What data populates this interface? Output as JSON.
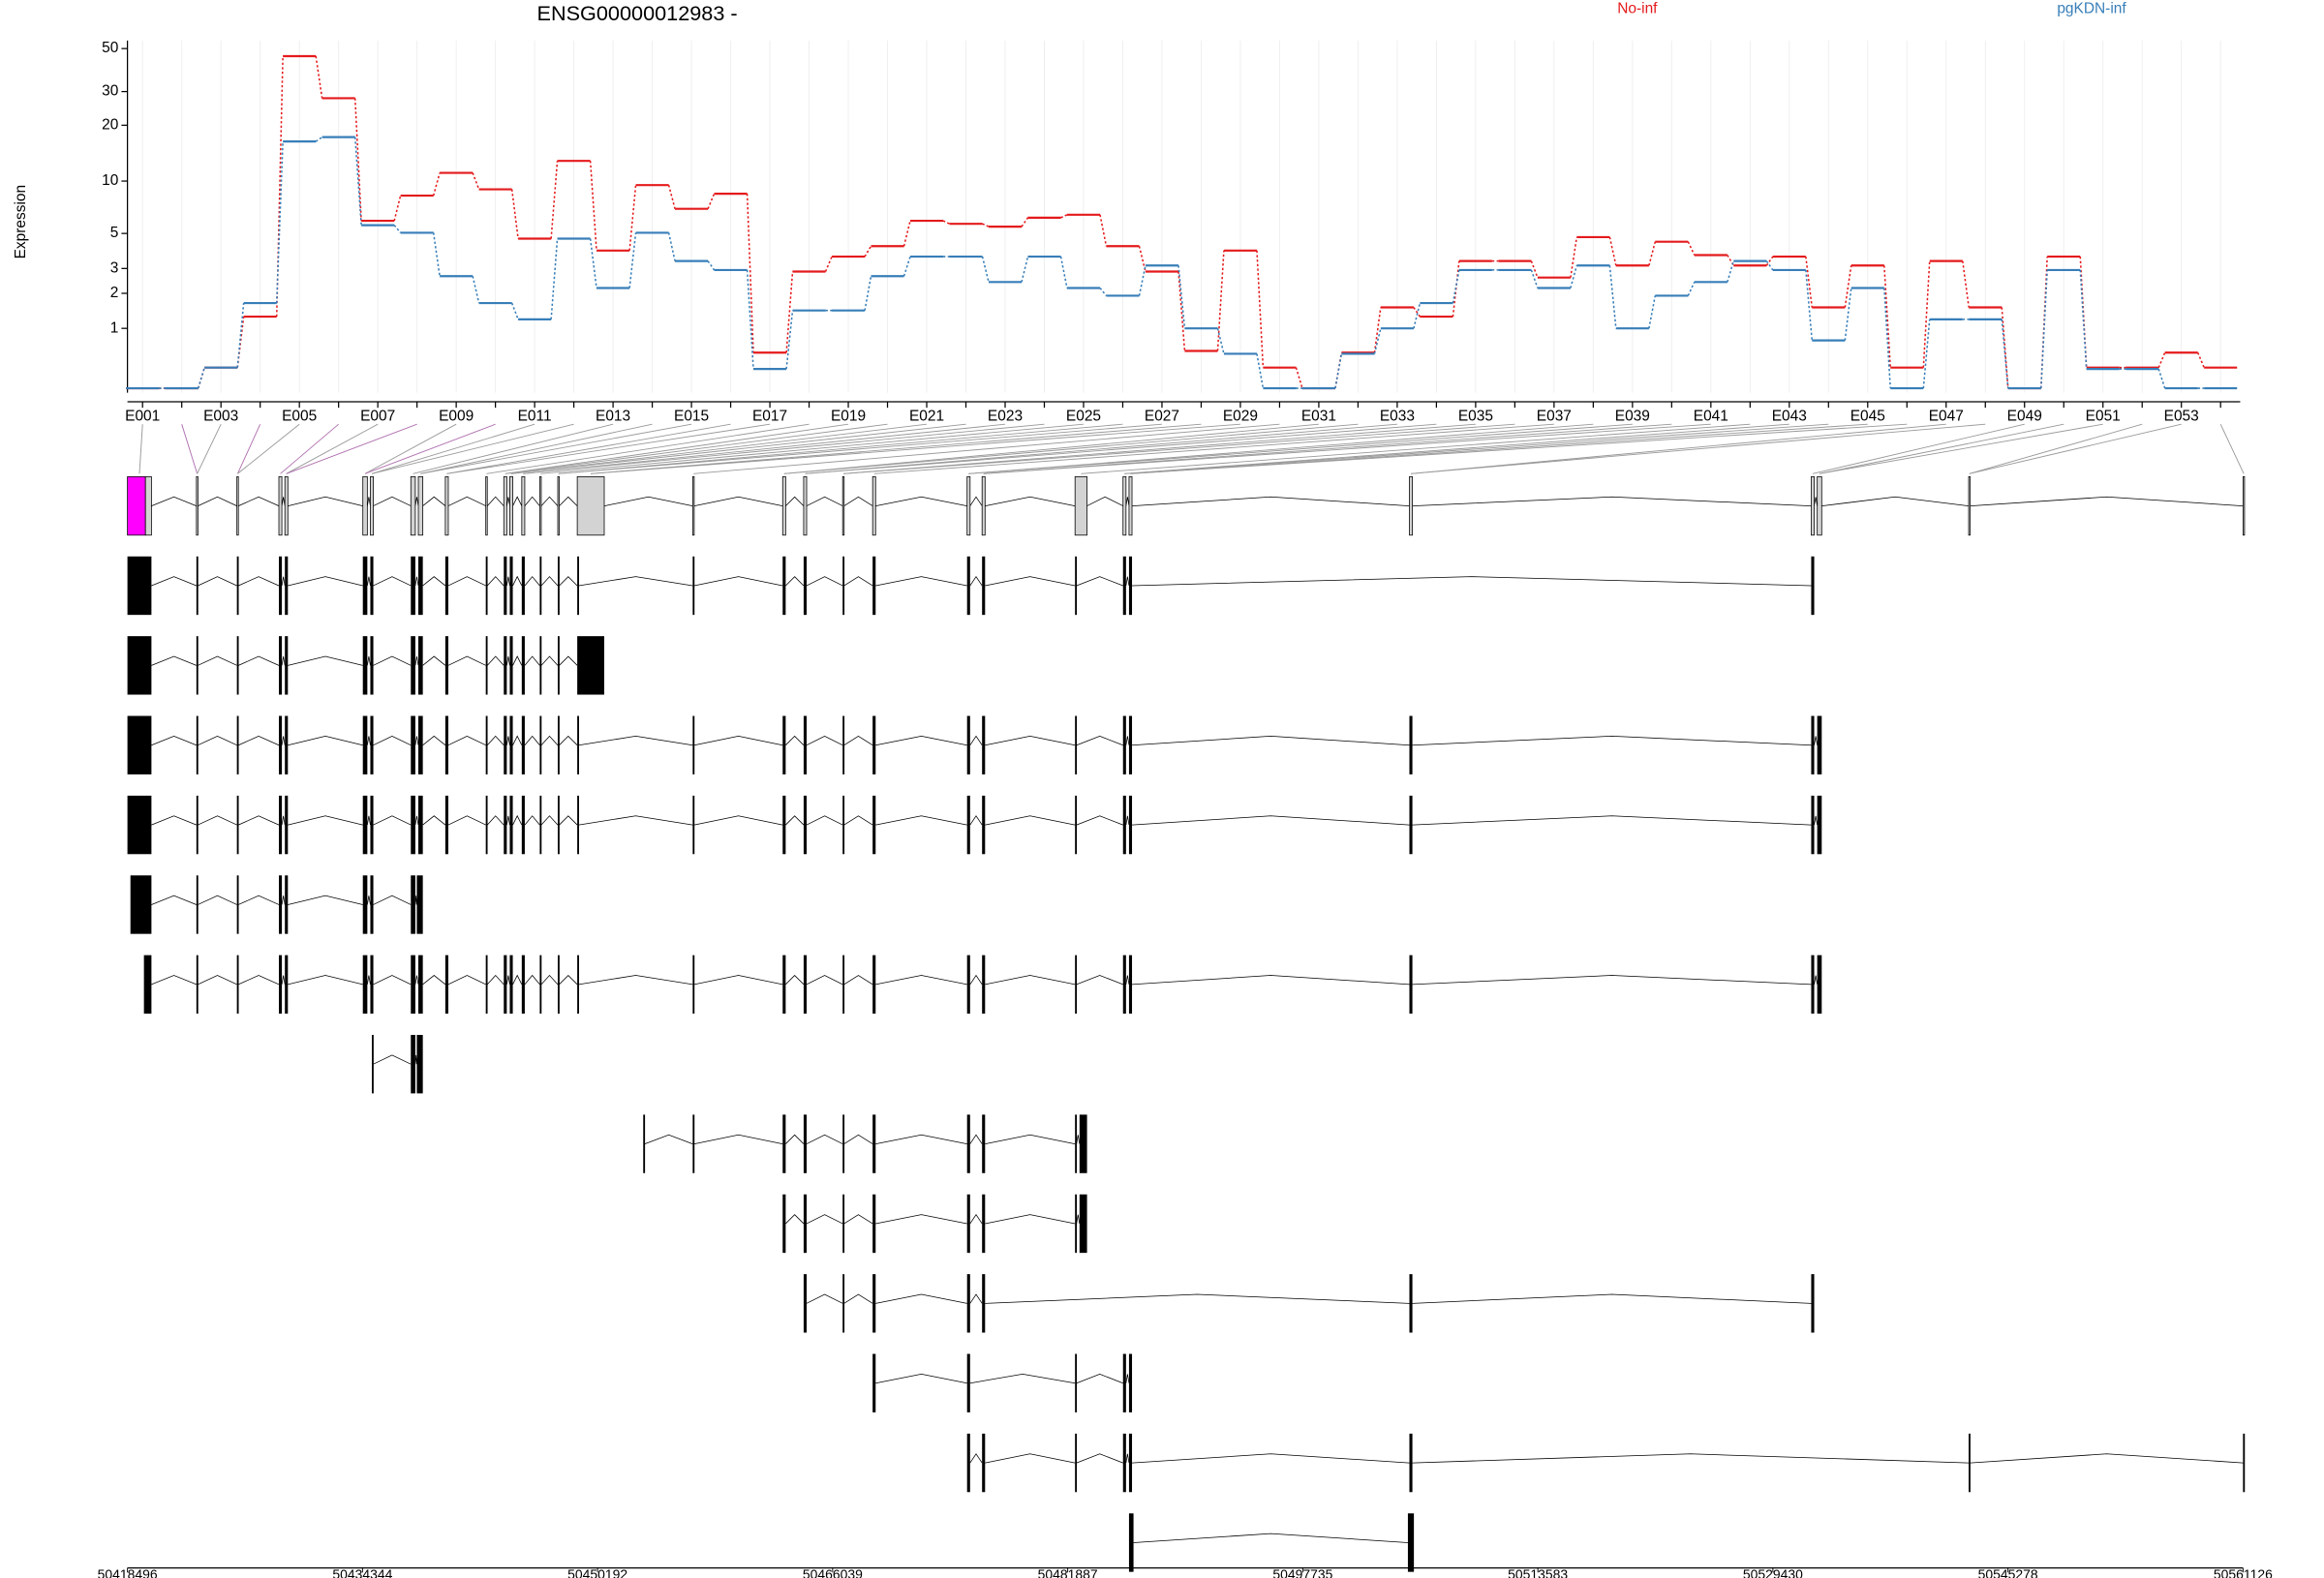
{
  "chart_data": [
    {
      "type": "line",
      "title": "ENSG00000012983 -",
      "ylabel": "Expression",
      "yscale": "log1p",
      "categories": [
        "E001",
        null,
        "E003",
        null,
        "E005",
        null,
        "E007",
        null,
        "E009",
        null,
        "E011",
        null,
        "E013",
        null,
        "E015",
        null,
        "E017",
        null,
        "E019",
        null,
        "E021",
        null,
        "E023",
        null,
        "E025",
        null,
        "E027",
        null,
        "E029",
        null,
        "E031",
        null,
        "E033",
        null,
        "E035",
        null,
        "E037",
        null,
        "E039",
        null,
        "E041",
        null,
        "E043",
        null,
        "E045",
        null,
        "E047",
        null,
        "E049",
        null,
        "E051",
        null,
        "E053",
        null
      ],
      "series": [
        {
          "name": "No-inf",
          "color": "#e41a1c",
          "values": [
            0,
            0,
            0.27,
            1.29,
            45.7,
            27.7,
            5.95,
            8.3,
            11.1,
            9,
            4.65,
            12.9,
            3.92,
            9.5,
            6.98,
            8.5,
            0.51,
            2.86,
            3.59,
            4.18,
            5.95,
            5.71,
            5.49,
            6.2,
            6.45,
            4.18,
            2.86,
            0.54,
            3.92,
            0.27,
            0,
            0.51,
            1.55,
            1.29,
            3.36,
            3.36,
            2.6,
            4.75,
            3.14,
            4.45,
            3.67,
            3.14,
            3.59,
            1.55,
            3.14,
            0.27,
            3.36,
            1.55,
            0,
            3.59,
            0.27,
            0.27,
            0.51,
            0.27
          ]
        },
        {
          "name": "pgKDN-inf",
          "color": "#377eb8",
          "values": [
            0,
            0,
            0.27,
            1.68,
            16.4,
            17.3,
            5.6,
            5.05,
            2.66,
            1.68,
            1.22,
            4.65,
            2.19,
            5.05,
            3.36,
            2.93,
            0.25,
            1.46,
            1.46,
            2.66,
            3.59,
            3.59,
            2.42,
            3.59,
            2.19,
            1.92,
            3.14,
            1.0,
            0.49,
            0,
            0,
            0.49,
            1.0,
            1.68,
            2.93,
            2.93,
            2.19,
            3.14,
            1.0,
            1.92,
            2.42,
            3.36,
            2.93,
            0.74,
            2.19,
            0,
            1.22,
            1.22,
            0,
            2.93,
            0.25,
            0.25,
            0,
            0
          ]
        }
      ],
      "ylim": [
        0,
        55
      ],
      "yticks": [
        1,
        2,
        3,
        5,
        10,
        20,
        30,
        50
      ],
      "grid": true,
      "legend": "top"
    },
    {
      "type": "gene-model",
      "xlim": [
        50418496,
        50561126
      ],
      "xticks": [
        50418496,
        50434344,
        50450192,
        50466039,
        50481887,
        50497735,
        50513583,
        50529430,
        50545278,
        50561126
      ]
    }
  ]
}
